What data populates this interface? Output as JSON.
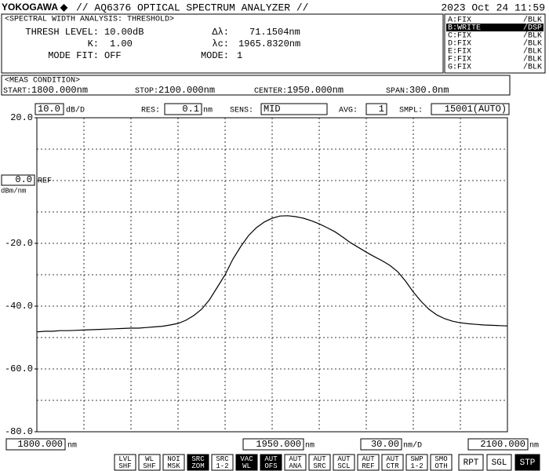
{
  "header": {
    "brand": "YOKOGAWA ◆",
    "model": "// AQ6376 OPTICAL SPECTRUM ANALYZER //",
    "datetime": "2023 Oct 24 11:59"
  },
  "analysis": {
    "title": "<SPECTRAL WIDTH ANALYSIS: THRESHOLD>",
    "fields": [
      {
        "label": "THRESH LEVEL:",
        "value": "10.00dB"
      },
      {
        "label": "K:",
        "value": "1.00"
      },
      {
        "label": "MODE FIT:",
        "value": "OFF"
      },
      {
        "label": "Δλ:",
        "value": "71.1504nm"
      },
      {
        "label": "λc:",
        "value": "1965.8320nm"
      },
      {
        "label": "MODE:",
        "value": "1"
      }
    ]
  },
  "traces": [
    {
      "label": "A:FIX",
      "mode": "/BLK",
      "active": false
    },
    {
      "label": "B:WRITE",
      "mode": "/DSP",
      "active": true
    },
    {
      "label": "C:FIX",
      "mode": "/BLK",
      "active": false
    },
    {
      "label": "D:FIX",
      "mode": "/BLK",
      "active": false
    },
    {
      "label": "E:FIX",
      "mode": "/BLK",
      "active": false
    },
    {
      "label": "F:FIX",
      "mode": "/BLK",
      "active": false
    },
    {
      "label": "G:FIX",
      "mode": "/BLK",
      "active": false
    }
  ],
  "meas_condition": {
    "title": "<MEAS CONDITION>",
    "items": [
      {
        "label": "START:",
        "value": "1800.000nm"
      },
      {
        "label": "STOP:",
        "value": "2100.000nm"
      },
      {
        "label": "CENTER:",
        "value": "1950.000nm"
      },
      {
        "label": "SPAN:",
        "value": "300.0nm"
      }
    ]
  },
  "settings": {
    "res_label": "RES:",
    "res_value": "0.1",
    "res_unit": "nm",
    "sens_label": "SENS:",
    "sens_value": "MID",
    "avg_label": "AVG:",
    "avg_value": "1",
    "smpl_label": "SMPL:",
    "smpl_value": "15001(AUTO)"
  },
  "chart_data": {
    "type": "line",
    "ydiv": {
      "value": 10,
      "label": "10.0"
    },
    "ydiv_unit": "dB/D",
    "xdiv": {
      "value": 30,
      "label": "30.00"
    },
    "xdiv_unit": "nm/D",
    "ref": {
      "value": 0,
      "label": "0.0"
    },
    "ref_label": "REF",
    "y_unit": "dBm/nm",
    "x_unit": "nm",
    "xlim": [
      1800,
      2100
    ],
    "ylim": [
      -80,
      20
    ],
    "xticks": [
      {
        "value": 1800,
        "label": "1800.000"
      },
      {
        "value": 1950,
        "label": "1950.000"
      },
      {
        "value": 2100,
        "label": "2100.000"
      }
    ],
    "yticks": [
      {
        "value": 20,
        "label": "20.0"
      },
      {
        "value": -20,
        "label": "-20.0"
      },
      {
        "value": -40,
        "label": "-40.0"
      },
      {
        "value": -60,
        "label": "-60.0"
      },
      {
        "value": -80,
        "label": "-80.0"
      }
    ],
    "grid": true,
    "x": [
      1800,
      1805,
      1810,
      1815,
      1820,
      1825,
      1830,
      1835,
      1840,
      1845,
      1850,
      1855,
      1860,
      1865,
      1870,
      1875,
      1880,
      1885,
      1890,
      1895,
      1900,
      1905,
      1910,
      1915,
      1920,
      1925,
      1930,
      1935,
      1940,
      1945,
      1950,
      1955,
      1960,
      1965,
      1970,
      1975,
      1980,
      1985,
      1990,
      1995,
      2000,
      2005,
      2010,
      2015,
      2020,
      2025,
      2030,
      2035,
      2040,
      2045,
      2050,
      2055,
      2060,
      2065,
      2070,
      2075,
      2080,
      2085,
      2090,
      2095,
      2100
    ],
    "series": [
      {
        "name": "B",
        "color": "#000000",
        "values": [
          -48.2,
          -48,
          -48,
          -47.8,
          -47.8,
          -47.7,
          -47.6,
          -47.5,
          -47.4,
          -47.3,
          -47.2,
          -47.1,
          -47,
          -47,
          -46.8,
          -46.6,
          -46.4,
          -46,
          -45.5,
          -44.5,
          -43,
          -41,
          -38,
          -34,
          -30,
          -25,
          -21,
          -17.5,
          -15,
          -13.2,
          -12,
          -11.3,
          -11.2,
          -11.5,
          -12,
          -12.8,
          -13.8,
          -15,
          -16.3,
          -18,
          -19.8,
          -21.3,
          -22.8,
          -24.2,
          -25.5,
          -27,
          -29,
          -32,
          -35.5,
          -38.5,
          -41,
          -42.8,
          -44,
          -44.8,
          -45.3,
          -45.6,
          -45.8,
          -46,
          -46.1,
          -46.2,
          -46.3
        ]
      }
    ]
  },
  "buttons": [
    {
      "top": "LVL",
      "bottom": "SHF",
      "active": false
    },
    {
      "top": "WL",
      "bottom": "SHF",
      "active": false
    },
    {
      "top": "NOI",
      "bottom": "MSK",
      "active": false
    },
    {
      "top": "SRC",
      "bottom": "ZOM",
      "active": true
    },
    {
      "top": "SRC",
      "bottom": "1-2",
      "active": false
    },
    {
      "top": "VAC",
      "bottom": "WL",
      "active": true
    },
    {
      "top": "AUT",
      "bottom": "OFS",
      "active": true
    },
    {
      "top": "AUT",
      "bottom": "ANA",
      "active": false
    },
    {
      "top": "AUT",
      "bottom": "SRC",
      "active": false
    },
    {
      "top": "AUT",
      "bottom": "SCL",
      "active": false
    },
    {
      "top": "AUT",
      "bottom": "REF",
      "active": false
    },
    {
      "top": "AUT",
      "bottom": "CTR",
      "active": false
    },
    {
      "top": "SWP",
      "bottom": "1-2",
      "active": false
    },
    {
      "top": "SMO",
      "bottom": "OTH",
      "active": false
    }
  ],
  "big_buttons": [
    {
      "label": "RPT",
      "active": false
    },
    {
      "label": "SGL",
      "active": false
    },
    {
      "label": "STP",
      "active": true
    }
  ]
}
